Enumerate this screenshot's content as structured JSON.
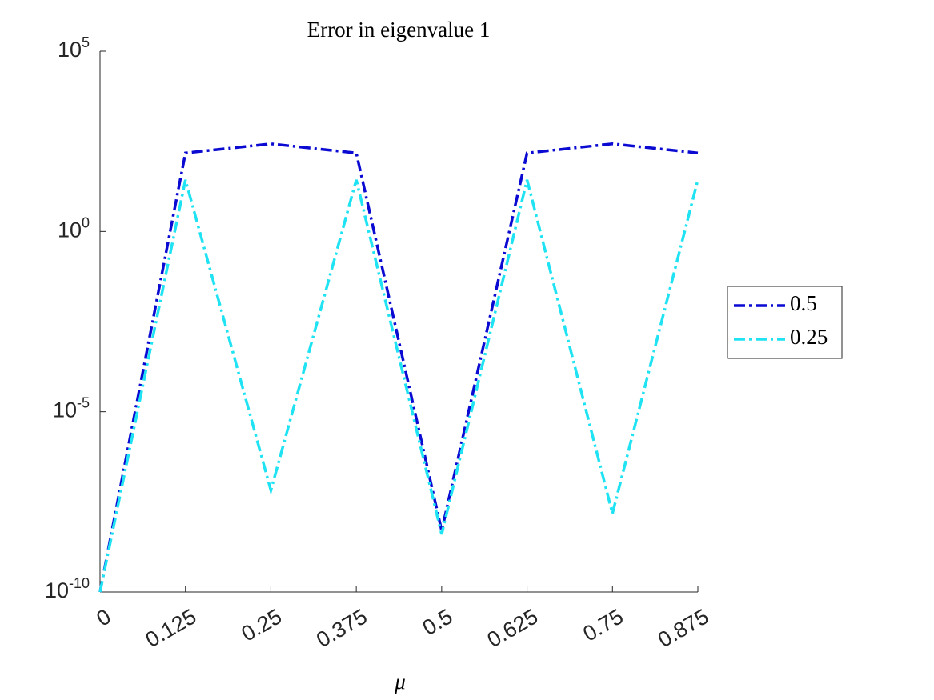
{
  "chart_data": {
    "type": "line",
    "title": "Error in eigenvalue 1",
    "x_label": "μ",
    "x": [
      0,
      0.125,
      0.25,
      0.375,
      0.5,
      0.625,
      0.75,
      0.875
    ],
    "xlim": [
      0,
      0.875
    ],
    "xticks": [
      0,
      0.125,
      0.25,
      0.375,
      0.5,
      0.625,
      0.75,
      0.875
    ],
    "yscale": "log",
    "ylim": [
      1e-10,
      100000
    ],
    "yticks": [
      {
        "value": 1e-10,
        "label": "10^-10"
      },
      {
        "value": 1e-05,
        "label": "10^-5"
      },
      {
        "value": 1,
        "label": "10^0"
      },
      {
        "value": 100000,
        "label": "10^5"
      }
    ],
    "grid": false,
    "legend_loc": "east",
    "series": [
      {
        "name": "0.5",
        "color": "#0a0ad2",
        "values": [
          1e-10,
          150,
          270,
          150,
          5e-09,
          150,
          270,
          150
        ]
      },
      {
        "name": "0.25",
        "color": "#1fe3f2",
        "values": [
          1e-10,
          27,
          6.6e-08,
          27,
          4e-09,
          27,
          1.5e-08,
          27
        ]
      }
    ]
  }
}
